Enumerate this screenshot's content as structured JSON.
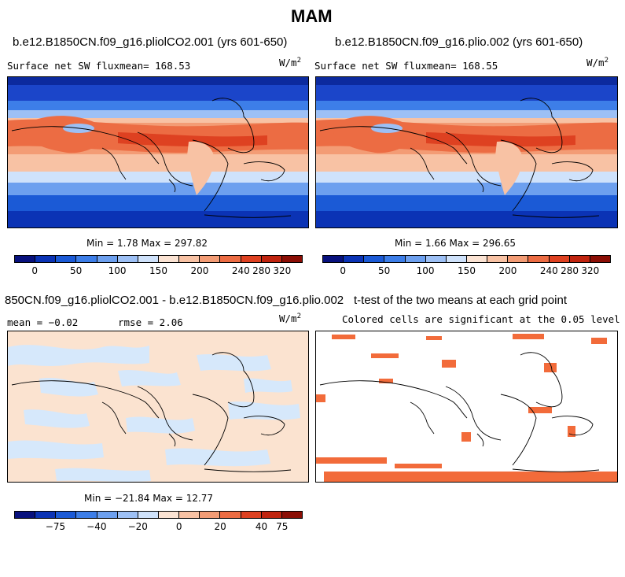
{
  "title": "MAM",
  "panels": [
    {
      "id": "p1",
      "case": "b.e12.B1850CN.f09_g16.pliolCO2.001 (yrs 601-650)",
      "var_label": "Surface net SW flux",
      "mean_label": "mean= 168.53",
      "units": "W/m",
      "units_sup": "2",
      "minmax": "Min =    1.78 Max = 297.82"
    },
    {
      "id": "p2",
      "case": "b.e12.B1850CN.f09_g16.plio.002 (yrs 601-650)",
      "var_label": "Surface net SW flux",
      "mean_label": "mean= 168.55",
      "units": "W/m",
      "units_sup": "2",
      "minmax": "Min =    1.66 Max = 296.65"
    },
    {
      "id": "p3",
      "case": "850CN.f09_g16.pliolCO2.001 - b.e12.B1850CN.f09_g16.plio.002",
      "stats_mean": "mean =  −0.02",
      "stats_rmse": "rmse =    2.06",
      "units": "W/m",
      "units_sup": "2",
      "minmax": "Min = −21.84 Max =  12.77"
    },
    {
      "id": "p4",
      "case": "t-test of the two means at each grid point",
      "subtitle": "Colored cells are significant at the 0.05 level"
    }
  ],
  "colorbar_abs": {
    "colors": [
      "#08117d",
      "#0b33b5",
      "#1b5ad6",
      "#3d7ee8",
      "#6da0ef",
      "#9dc0f5",
      "#cfe2fb",
      "#fbe3d3",
      "#f8c2a4",
      "#f39c75",
      "#ec6c43",
      "#de4121",
      "#c0240f",
      "#8b0e05"
    ],
    "ticks": [
      "0",
      "50",
      "100",
      "150",
      "200",
      "240",
      "280",
      "320"
    ]
  },
  "colorbar_diff": {
    "colors": [
      "#08117d",
      "#0b33b5",
      "#1b5ad6",
      "#3d7ee8",
      "#6da0ef",
      "#9dc0f5",
      "#cfe2fb",
      "#fbe3d3",
      "#f8c2a4",
      "#f39c75",
      "#ec6c43",
      "#de4121",
      "#c0240f",
      "#8b0e05"
    ],
    "ticks": [
      "−75",
      "−40",
      "−20",
      "0",
      "20",
      "40",
      "75"
    ]
  },
  "colors": {
    "ocean_polar": "#1b45c9",
    "tropics_high": "#ec5f36",
    "diff_neg": "#d6e8fb",
    "diff_pos": "#fbe3d0",
    "signif": "#f26b3a"
  }
}
